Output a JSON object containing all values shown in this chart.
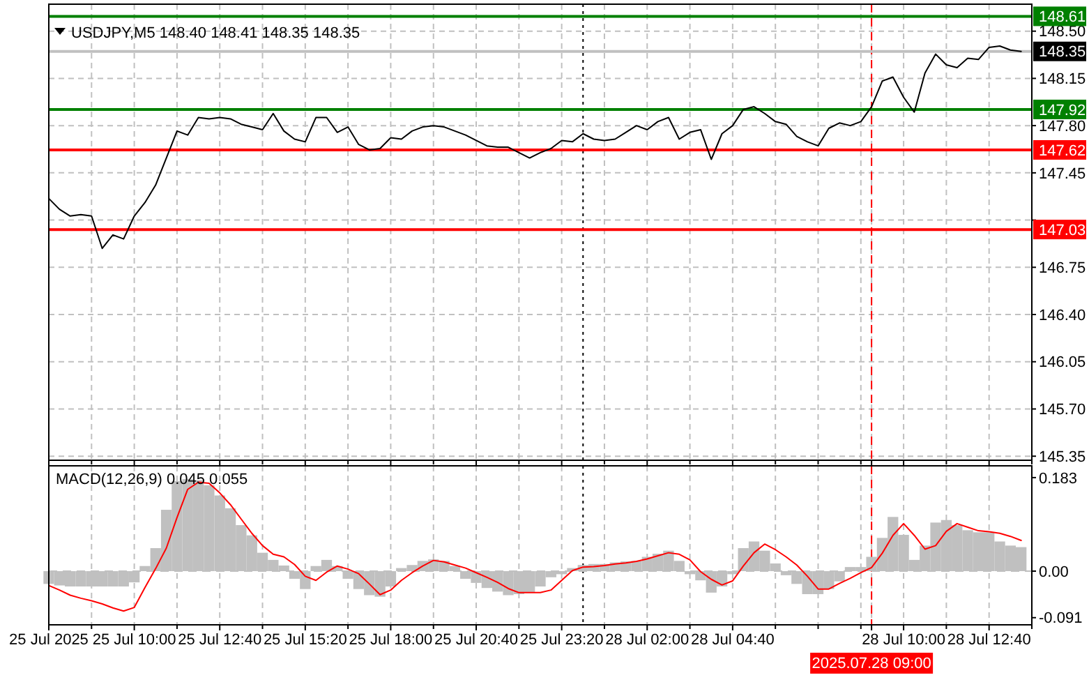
{
  "chart_data": [
    {
      "type": "line",
      "title": "USDJPY,M5  148.40 148.41 148.35 148.35",
      "categories": [
        "25 Jul 2025",
        null,
        null,
        null,
        null,
        null,
        null,
        null,
        "25 Jul 10:00",
        null,
        null,
        null,
        null,
        null,
        null,
        null,
        "25 Jul 12:40",
        null,
        null,
        null,
        null,
        null,
        null,
        null,
        "25 Jul 15:20",
        null,
        null,
        null,
        null,
        null,
        null,
        null,
        "25 Jul 18:00",
        null,
        null,
        null,
        null,
        null,
        null,
        null,
        "25 Jul 20:40",
        null,
        null,
        null,
        null,
        null,
        null,
        null,
        "25 Jul 23:20",
        null,
        null,
        null,
        null,
        null,
        null,
        null,
        "28 Jul 02:00",
        null,
        null,
        null,
        null,
        null,
        null,
        null,
        "28 Jul 04:40",
        null,
        null,
        null,
        null,
        null,
        null,
        null,
        null,
        null,
        null,
        null,
        null,
        "2025.07.28 09:00",
        null,
        null,
        "28 Jul 10:00",
        null,
        null,
        null,
        null,
        null,
        null,
        null,
        "28 Jul 12:40",
        null,
        null,
        null,
        null
      ],
      "series": [
        {
          "color": "#000000",
          "values": [
            147.26,
            147.18,
            147.13,
            147.14,
            147.13,
            146.89,
            146.99,
            146.96,
            147.13,
            147.23,
            147.36,
            147.56,
            147.76,
            147.73,
            147.86,
            147.85,
            147.86,
            147.85,
            147.81,
            147.79,
            147.77,
            147.89,
            147.76,
            147.7,
            147.68,
            147.86,
            147.86,
            147.75,
            147.79,
            147.66,
            147.62,
            147.63,
            147.71,
            147.7,
            147.76,
            147.79,
            147.8,
            147.79,
            147.76,
            147.73,
            147.69,
            147.65,
            147.64,
            147.64,
            147.6,
            147.56,
            147.6,
            147.63,
            147.69,
            147.68,
            147.74,
            147.7,
            147.69,
            147.7,
            147.75,
            147.8,
            147.77,
            147.83,
            147.86,
            147.7,
            147.75,
            147.77,
            147.55,
            147.74,
            147.8,
            147.92,
            147.94,
            147.89,
            147.83,
            147.81,
            147.72,
            147.68,
            147.65,
            147.78,
            147.82,
            147.8,
            147.83,
            147.94,
            148.13,
            148.16,
            148.01,
            147.9,
            148.19,
            148.33,
            148.25,
            148.23,
            148.3,
            148.29,
            148.38,
            148.39,
            148.36,
            148.35,
            null
          ]
        }
      ],
      "ylim": [
        145.32,
        148.7
      ],
      "yticks": [
        145.35,
        {
          "value": 145.7,
          "label": "145.70"
        },
        146.05,
        {
          "value": 146.4,
          "label": "146.40"
        },
        146.75,
        {
          "value": 147.1,
          "label": null
        },
        147.45,
        {
          "value": 147.8,
          "label": "147.80"
        },
        148.15,
        {
          "value": 148.5,
          "label": "148.50"
        }
      ],
      "tick_labels": "y",
      "grid": true,
      "ref_lines": [
        {
          "axis": "y",
          "value": 148.61,
          "label": "148.61",
          "color": "#008000"
        },
        {
          "axis": "y",
          "value": 148.35,
          "label": "148.35",
          "color": "#c0c0c0"
        },
        {
          "axis": "y",
          "value": 147.92,
          "label": "147.92",
          "color": "#008000"
        },
        {
          "axis": "y",
          "value": 147.62,
          "label": "147.62",
          "color": "#ff0000"
        },
        {
          "axis": "y",
          "value": 147.03,
          "label": "147.03",
          "color": "#ff0000"
        },
        {
          "axis": "x",
          "value": "2025.07.28 09:00",
          "color": "#ff0000",
          "line_style": "dashed"
        }
      ]
    },
    {
      "type": "bar",
      "title": "MACD(12,26,9) 0.045 0.055",
      "categories": [
        "25 Jul 2025",
        null,
        null,
        null,
        null,
        null,
        null,
        null,
        "25 Jul 10:00",
        null,
        null,
        null,
        null,
        null,
        null,
        null,
        "25 Jul 12:40",
        null,
        null,
        null,
        null,
        null,
        null,
        null,
        "25 Jul 15:20",
        null,
        null,
        null,
        null,
        null,
        null,
        null,
        "25 Jul 18:00",
        null,
        null,
        null,
        null,
        null,
        null,
        null,
        "25 Jul 20:40",
        null,
        null,
        null,
        null,
        null,
        null,
        null,
        "25 Jul 23:20",
        null,
        null,
        null,
        null,
        null,
        null,
        null,
        "28 Jul 02:00",
        null,
        null,
        null,
        null,
        null,
        null,
        null,
        "28 Jul 04:40",
        null,
        null,
        null,
        null,
        null,
        null,
        null,
        null,
        null,
        null,
        null,
        null,
        "2025.07.28 09:00",
        null,
        null,
        "28 Jul 10:00",
        null,
        null,
        null,
        null,
        null,
        null,
        null,
        "28 Jul 12:40",
        null,
        null,
        null,
        null
      ],
      "series": [
        {
          "color": "#c0c0c0",
          "values": [
            -0.025,
            -0.028,
            -0.03,
            -0.03,
            -0.03,
            -0.03,
            -0.03,
            -0.03,
            -0.022,
            0.01,
            0.045,
            0.12,
            0.176,
            0.18,
            0.178,
            0.168,
            0.148,
            0.123,
            0.09,
            0.07,
            0.036,
            0.022,
            0.011,
            -0.015,
            -0.035,
            0.01,
            0.022,
            0.01,
            -0.015,
            -0.035,
            -0.047,
            -0.05,
            -0.03,
            0.006,
            0.012,
            0.02,
            0.023,
            0.02,
            0.01,
            -0.015,
            -0.023,
            -0.033,
            -0.04,
            -0.047,
            -0.045,
            -0.042,
            -0.03,
            -0.012,
            -0.006,
            0.006,
            0.012,
            0.014,
            0.014,
            0.017,
            0.019,
            0.02,
            0.028,
            0.034,
            0.04,
            0.02,
            -0.006,
            -0.018,
            -0.042,
            -0.03,
            -0.006,
            0.045,
            0.058,
            0.04,
            0.015,
            -0.008,
            -0.025,
            -0.045,
            -0.045,
            -0.035,
            -0.02,
            0.008,
            0.008,
            0.028,
            0.065,
            0.106,
            0.071,
            0.022,
            0.05,
            0.095,
            0.1,
            0.09,
            0.08,
            0.076,
            0.076,
            0.058,
            0.05,
            0.047,
            null
          ]
        },
        {
          "type": "line",
          "color": "#ff0000",
          "values": [
            -0.028,
            -0.037,
            -0.047,
            -0.053,
            -0.058,
            -0.064,
            -0.072,
            -0.078,
            -0.071,
            -0.032,
            0.005,
            0.045,
            0.105,
            0.16,
            0.174,
            0.172,
            0.153,
            0.13,
            0.102,
            0.074,
            0.05,
            0.033,
            0.028,
            0.013,
            -0.01,
            -0.018,
            -0.002,
            0.01,
            0.004,
            -0.005,
            -0.025,
            -0.046,
            -0.037,
            -0.018,
            -0.003,
            0.01,
            0.021,
            0.018,
            0.012,
            0.006,
            -0.003,
            -0.012,
            -0.022,
            -0.034,
            -0.042,
            -0.042,
            -0.042,
            -0.037,
            -0.018,
            0.001,
            0.008,
            0.009,
            0.011,
            0.014,
            0.016,
            0.019,
            0.024,
            0.03,
            0.036,
            0.033,
            0.022,
            -0.001,
            -0.016,
            -0.027,
            -0.019,
            0.01,
            0.036,
            0.053,
            0.042,
            0.028,
            0.012,
            -0.01,
            -0.035,
            -0.035,
            -0.024,
            -0.014,
            -0.003,
            0.007,
            0.035,
            0.07,
            0.093,
            0.07,
            0.043,
            0.05,
            0.078,
            0.093,
            0.086,
            0.079,
            0.077,
            0.074,
            0.068,
            0.06,
            null
          ]
        }
      ],
      "ylim": [
        -0.105,
        0.206
      ],
      "yticks": [
        0.183,
        {
          "value": 0,
          "label": "0.00"
        },
        -0.091
      ],
      "grid": "x",
      "ref_lines": [
        {
          "axis": "y",
          "value": 0,
          "color": "#c0c0c0",
          "line_style": "dashed"
        },
        {
          "axis": "x",
          "value": "2025.07.28 09:00",
          "color": "#ff0000",
          "line_style": "dashed"
        }
      ]
    }
  ]
}
